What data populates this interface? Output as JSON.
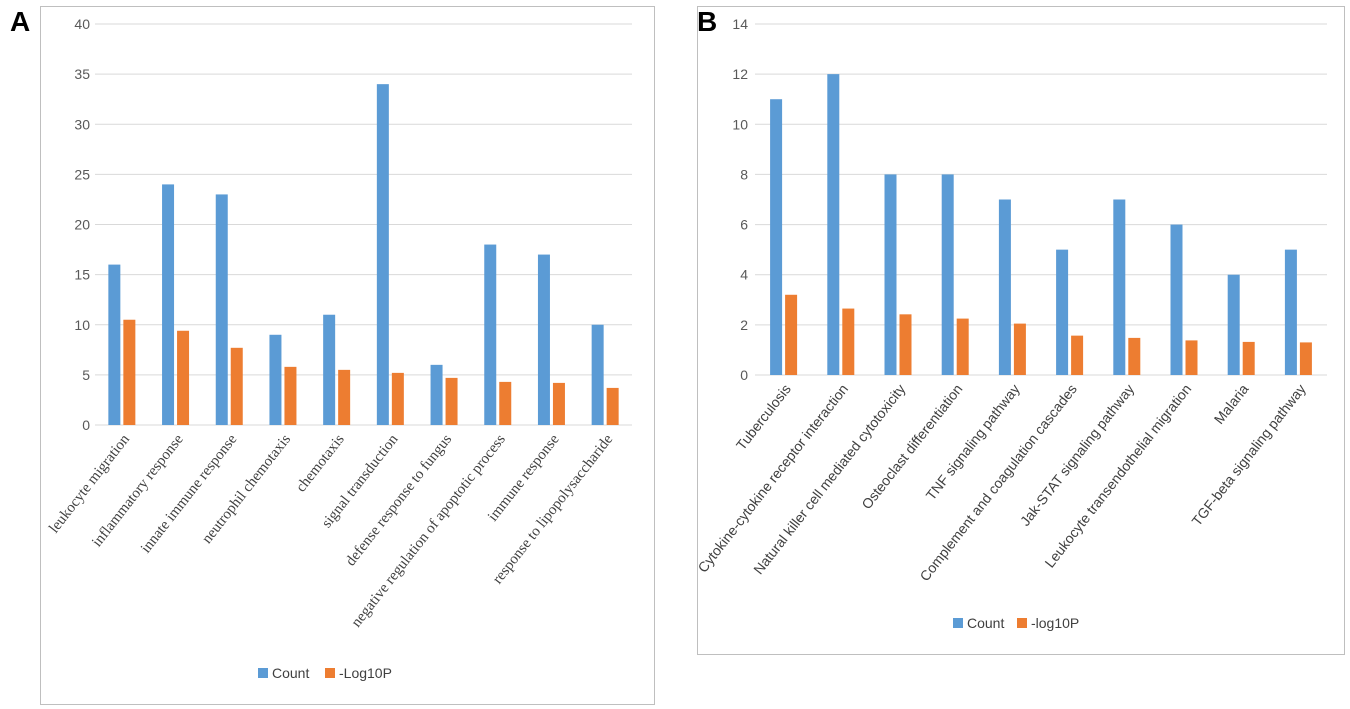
{
  "chart_data": [
    {
      "panel_label": "A",
      "type": "bar",
      "title": "",
      "xlabel": "",
      "ylabel": "",
      "ylim": [
        0,
        40
      ],
      "yticks": [
        0,
        5,
        10,
        15,
        20,
        25,
        30,
        35,
        40
      ],
      "grid": true,
      "legend_position": "bottom",
      "categories": [
        "leukocyte migration",
        "inflammatory response",
        "innate immune response",
        "neutrophil chemotaxis",
        "chemotaxis",
        "signal transduction",
        "defense response to fungus",
        "negative regulation of apoptotic process",
        "immune response",
        "response to lipopolysaccharide"
      ],
      "series": [
        {
          "name": "Count",
          "color": "#5b9bd5",
          "values": [
            16,
            24,
            23,
            9,
            11,
            34,
            6,
            18,
            17,
            10
          ]
        },
        {
          "name": "-Log10P",
          "color": "#ed7d31",
          "values": [
            10.5,
            9.4,
            7.7,
            5.8,
            5.5,
            5.2,
            4.7,
            4.3,
            4.2,
            3.7
          ]
        }
      ]
    },
    {
      "panel_label": "B",
      "type": "bar",
      "title": "",
      "xlabel": "",
      "ylabel": "",
      "ylim": [
        0,
        14
      ],
      "yticks": [
        0,
        2,
        4,
        6,
        8,
        10,
        12,
        14
      ],
      "grid": true,
      "legend_position": "bottom",
      "categories": [
        "Tuberculosis",
        "Cytokine-cytokine receptor interaction",
        "Natural killer cell mediated cytotoxicity",
        "Osteoclast differentiation",
        "TNF signaling pathway",
        "Complement and coagulation cascades",
        "Jak-STAT signaling pathway",
        "Leukocyte transendothelial migration",
        "Malaria",
        "TGF-beta signaling pathway"
      ],
      "series": [
        {
          "name": "Count",
          "color": "#5b9bd5",
          "values": [
            11,
            12,
            8,
            8,
            7,
            5,
            7,
            6,
            4,
            5
          ]
        },
        {
          "name": "-log10P",
          "color": "#ed7d31",
          "values": [
            3.2,
            2.65,
            2.42,
            2.25,
            2.05,
            1.57,
            1.48,
            1.38,
            1.32,
            1.3
          ]
        }
      ]
    }
  ]
}
